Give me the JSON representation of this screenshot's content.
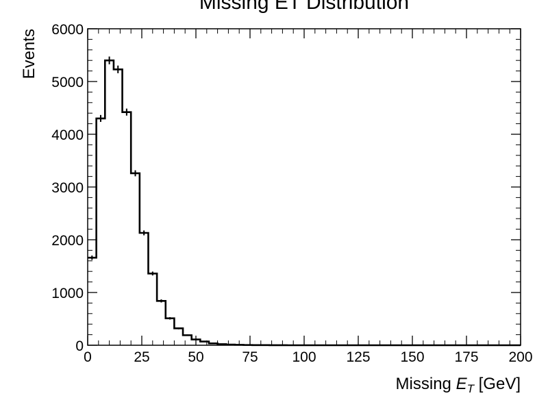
{
  "chart_data": {
    "type": "histogram",
    "title": "Missing ET Distribution",
    "xlabel_prefix": "Missing ",
    "xlabel_var": "E",
    "xlabel_sub": "T",
    "xlabel_unit": " [GeV]",
    "ylabel": "Events",
    "xlim": [
      0,
      200
    ],
    "ylim": [
      0,
      6000
    ],
    "xticks": [
      0,
      25,
      50,
      75,
      100,
      125,
      150,
      175,
      200
    ],
    "yticks": [
      0,
      1000,
      2000,
      3000,
      4000,
      5000,
      6000
    ],
    "bin_width": 4,
    "bin_edges_start": 0,
    "values": [
      1660,
      4300,
      5400,
      5230,
      4420,
      3260,
      2130,
      1360,
      840,
      510,
      320,
      190,
      110,
      70,
      35,
      20,
      12,
      8,
      5,
      3,
      2,
      1,
      1,
      0,
      0,
      0,
      0,
      0,
      0,
      0,
      0,
      0,
      0,
      0,
      0,
      0,
      0,
      0,
      0,
      0,
      0,
      0,
      0,
      0,
      0,
      0,
      0,
      0,
      0,
      0
    ],
    "errorbars": true,
    "color": "#000000"
  }
}
